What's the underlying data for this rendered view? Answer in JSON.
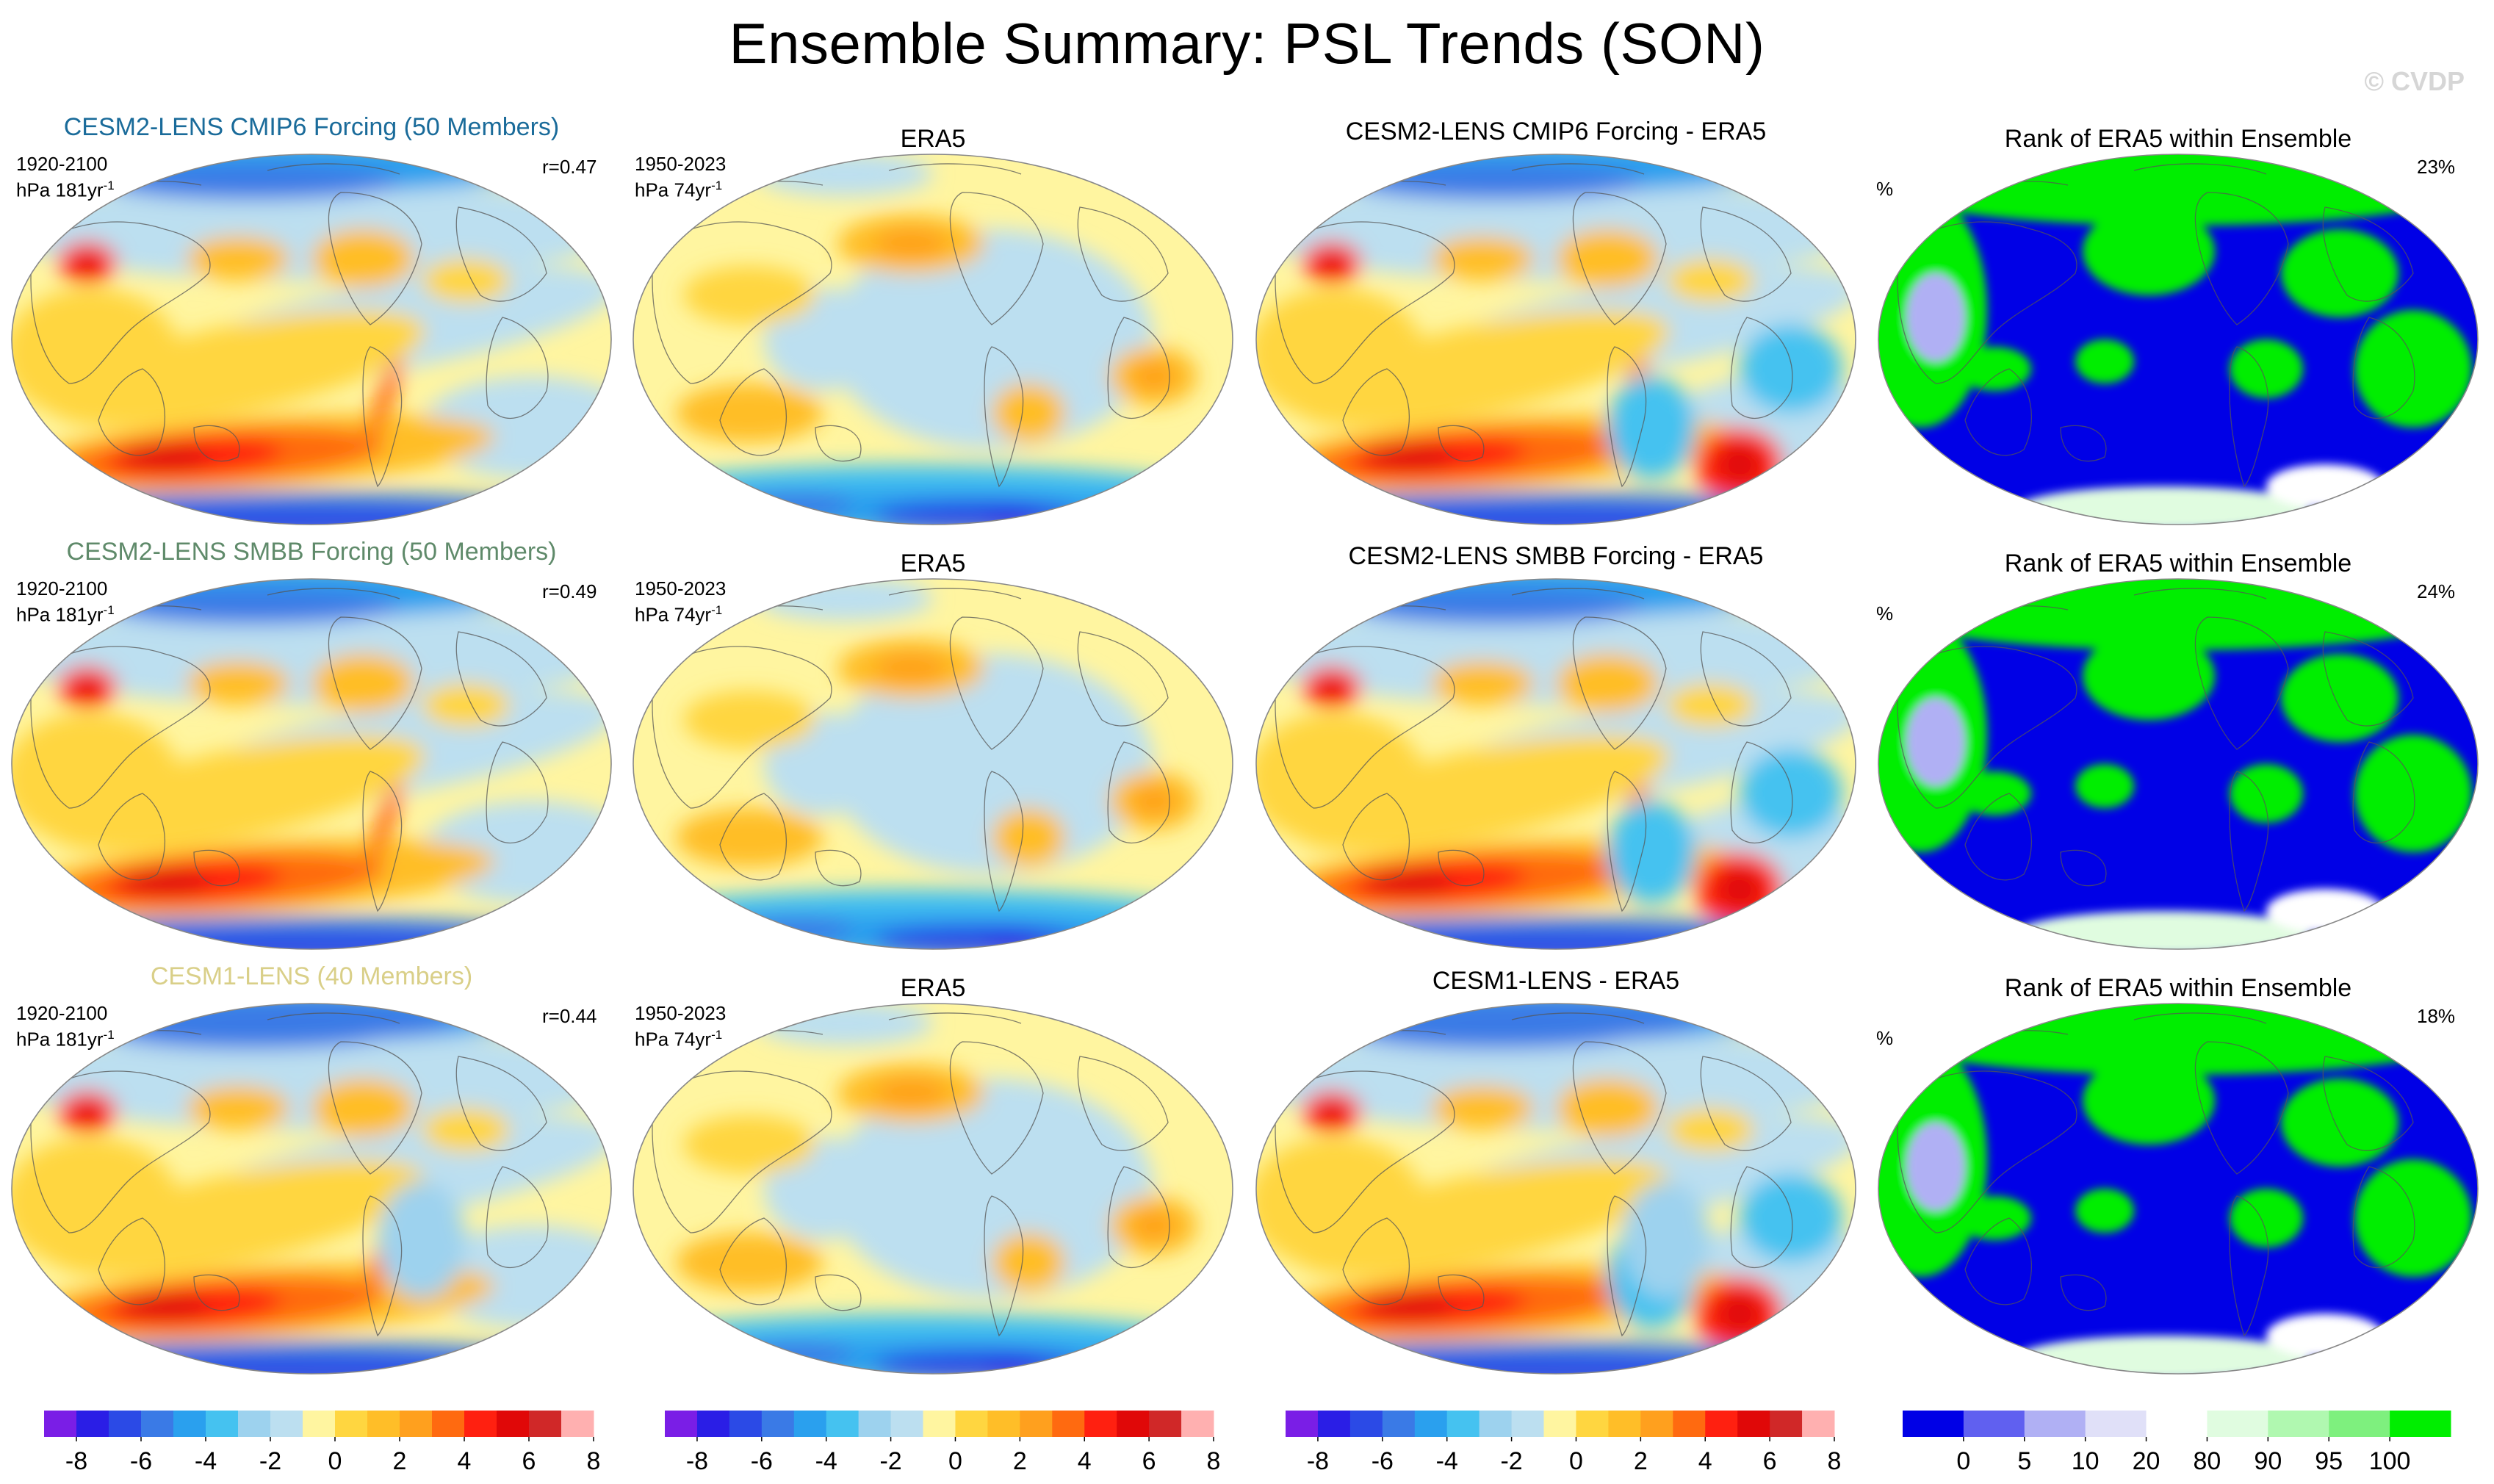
{
  "title": "Ensemble Summary: PSL Trends (SON)",
  "watermark": "© CVDP",
  "colors": {
    "trend_palette": [
      "#7a1ee6",
      "#2a1ee6",
      "#2b4ae6",
      "#3a7ae6",
      "#2aa0ee",
      "#45c2f0",
      "#9dd2ee",
      "#bcdff0",
      "#fff5a0",
      "#ffd640",
      "#ffbe28",
      "#ffa01e",
      "#ff6a10",
      "#ff2010",
      "#e00808",
      "#d02828",
      "#ffb0b0"
    ],
    "rank_palette": [
      "#0000e6",
      "#6060f0",
      "#b0b0f4",
      "#e0e0f8",
      "#ffffff",
      "#e0fce0",
      "#b0f8b0",
      "#7ef07e",
      "#00ee00"
    ]
  },
  "rows": [
    {
      "model_title": "CESM2-LENS CMIP6 Forcing (50 Members)",
      "model_title_color": "#1a6b9a",
      "model_years": "1920-2100",
      "model_units": "hPa 181yr",
      "model_r": "r=0.47",
      "obs_title": "ERA5",
      "obs_years": "1950-2023",
      "obs_units": "hPa 74yr",
      "diff_title": "CESM2-LENS CMIP6 Forcing - ERA5",
      "rank_title": "Rank of ERA5 within Ensemble",
      "rank_unit": "%",
      "rank_pct": "23%"
    },
    {
      "model_title": "CESM2-LENS SMBB Forcing (50 Members)",
      "model_title_color": "#5f8a6a",
      "model_years": "1920-2100",
      "model_units": "hPa 181yr",
      "model_r": "r=0.49",
      "obs_title": "ERA5",
      "obs_years": "1950-2023",
      "obs_units": "hPa 74yr",
      "diff_title": "CESM2-LENS SMBB Forcing - ERA5",
      "rank_title": "Rank of ERA5 within Ensemble",
      "rank_unit": "%",
      "rank_pct": "24%"
    },
    {
      "model_title": "CESM1-LENS (40 Members)",
      "model_title_color": "#d9cf88",
      "model_years": "1920-2100",
      "model_units": "hPa 181yr",
      "model_r": "r=0.44",
      "obs_title": "ERA5",
      "obs_years": "1950-2023",
      "obs_units": "hPa 74yr",
      "diff_title": "CESM1-LENS - ERA5",
      "rank_title": "Rank of ERA5 within Ensemble",
      "rank_unit": "%",
      "rank_pct": "18%"
    }
  ],
  "unit_superscript": "-1",
  "colorbars": {
    "trend_labels": [
      "-8",
      "-6",
      "-4",
      "-2",
      "0",
      "2",
      "4",
      "6",
      "8"
    ],
    "rank_labels": [
      "0",
      "5",
      "10",
      "20",
      "80",
      "90",
      "95",
      "100"
    ]
  }
}
